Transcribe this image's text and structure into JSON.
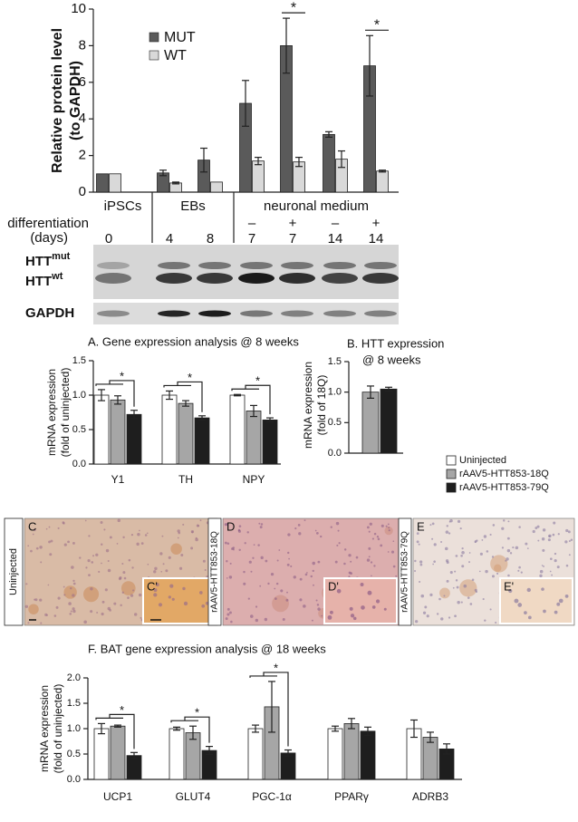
{
  "chart_data": [
    {
      "type": "bar",
      "ylabel": [
        "Relative protein level",
        "(to GAPDH)"
      ],
      "categories": [
        "0",
        "4",
        "8",
        "7",
        "7",
        "14",
        "14"
      ],
      "conditions": [
        null,
        null,
        null,
        "–",
        "+",
        "–",
        "+"
      ],
      "groups": [
        "iPSCs",
        "EBs",
        "neuronal medium"
      ],
      "xlabel": [
        "differentiation",
        "(days)"
      ],
      "series": [
        {
          "name": "MUT",
          "color": "#5a5a5a",
          "values": [
            1,
            1.05,
            1.75,
            4.85,
            8.0,
            3.15,
            6.9
          ],
          "errors": [
            0,
            0.15,
            0.65,
            1.25,
            1.5,
            0.15,
            1.65
          ]
        },
        {
          "name": "WT",
          "color": "#d9d9d9",
          "values": [
            1,
            0.5,
            0.55,
            1.7,
            1.65,
            1.8,
            1.15
          ],
          "errors": [
            0,
            0.05,
            0,
            0.2,
            0.25,
            0.45,
            0.05
          ]
        }
      ],
      "significance": [
        {
          "category": 4,
          "label": "*"
        },
        {
          "category": 6,
          "label": "*"
        }
      ],
      "ylim": [
        0,
        10
      ],
      "yticks": [
        0,
        2,
        4,
        6,
        8,
        10
      ]
    },
    {
      "type": "bar",
      "title": [
        "A. Gene expression analysis @ 8 weeks"
      ],
      "ylabel": [
        "mRNA expression",
        "(fold of uninjected)"
      ],
      "categories": [
        "Y1",
        "TH",
        "NPY"
      ],
      "series": [
        {
          "name": "Uninjected",
          "color": "#ffffff",
          "values": [
            1.0,
            1.0,
            1.0
          ],
          "errors": [
            0.08,
            0.06,
            0.01
          ]
        },
        {
          "name": "rAAV5-HTT853-18Q",
          "color": "#a6a6a6",
          "values": [
            0.93,
            0.88,
            0.77
          ],
          "errors": [
            0.06,
            0.04,
            0.08
          ]
        },
        {
          "name": "rAAV5-HTT853-79Q",
          "color": "#1e1e1e",
          "values": [
            0.72,
            0.67,
            0.64
          ],
          "errors": [
            0.06,
            0.03,
            0.03
          ]
        }
      ],
      "significance": [
        {
          "category": 0,
          "label": "*"
        },
        {
          "category": 1,
          "label": "*"
        },
        {
          "category": 2,
          "label": "*"
        }
      ],
      "ylim": [
        0,
        1.5
      ],
      "yticks": [
        {
          "value": 0,
          "label": "0.0"
        },
        0.5,
        {
          "value": 1,
          "label": "1.0"
        },
        1.5
      ]
    },
    {
      "type": "bar",
      "title": [
        "B. HTT expression",
        "@ 8 weeks"
      ],
      "ylabel": [
        "mRNA expression",
        "(fold of 18Q)"
      ],
      "categories": [
        null
      ],
      "series": [
        {
          "color": "#a6a6a6",
          "values": [
            1.0
          ],
          "errors": [
            0.1
          ]
        },
        {
          "color": "#1e1e1e",
          "values": [
            1.05
          ],
          "errors": [
            0.03
          ]
        }
      ],
      "ylim": [
        0,
        1.5
      ],
      "yticks": [
        {
          "value": 0,
          "label": "0.0"
        },
        0.5,
        {
          "value": 1,
          "label": "1.0"
        },
        1.5
      ]
    },
    {
      "type": "bar",
      "title": [
        "F. BAT gene expression analysis @ 18 weeks"
      ],
      "ylabel": [
        "mRNA expression",
        "(fold of uninjected)"
      ],
      "categories": [
        "UCP1",
        "GLUT4",
        "PGC-1α",
        "PPARγ",
        "ADRB3"
      ],
      "series": [
        {
          "color": "#ffffff",
          "values": [
            1.0,
            1.0,
            1.0,
            1.0,
            1.0
          ],
          "errors": [
            0.1,
            0.03,
            0.07,
            0.05,
            0.17
          ]
        },
        {
          "color": "#a6a6a6",
          "values": [
            1.05,
            0.92,
            1.43,
            1.1,
            0.83
          ],
          "errors": [
            0.02,
            0.13,
            0.5,
            0.1,
            0.1
          ]
        },
        {
          "color": "#1e1e1e",
          "values": [
            0.47,
            0.57,
            0.52,
            0.95,
            0.6
          ],
          "errors": [
            0.06,
            0.08,
            0.06,
            0.08,
            0.1
          ]
        }
      ],
      "significance": [
        {
          "category": 0,
          "label": "*"
        },
        {
          "category": 1,
          "label": "*"
        },
        {
          "category": 2,
          "label": "*"
        }
      ],
      "ylim": [
        0,
        2
      ],
      "yticks": [
        {
          "value": 0,
          "label": "0.0"
        },
        0.5,
        {
          "value": 1,
          "label": "1.0"
        },
        1.5,
        {
          "value": 2,
          "label": "2.0"
        }
      ]
    }
  ],
  "blot": {
    "labels": [
      {
        "text": "HTT",
        "sup": "mut"
      },
      {
        "text": "HTT",
        "sup": "wt"
      },
      {
        "text": "GAPDH"
      }
    ]
  },
  "micrographs": [
    {
      "panel": "C",
      "inset": "C'",
      "label": "Uninjected"
    },
    {
      "panel": "D",
      "inset": "D'",
      "label": "rAAV5-HTT853-18Q"
    },
    {
      "panel": "E",
      "inset": "E'",
      "label": "rAAV5-HTT853-79Q"
    }
  ]
}
